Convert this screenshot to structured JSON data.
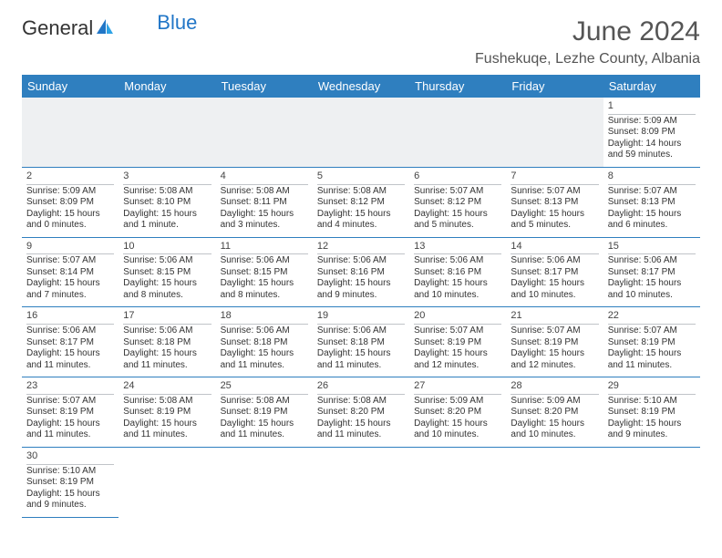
{
  "brand": {
    "text1": "General",
    "text2": "Blue",
    "color_main": "#333333",
    "color_accent": "#2176c7"
  },
  "title": {
    "month": "June 2024",
    "location": "Fushekuqe, Lezhe County, Albania",
    "title_fontsize": 30,
    "location_fontsize": 16,
    "title_color": "#555555"
  },
  "colors": {
    "header_bg": "#2f7fbf",
    "header_fg": "#ffffff",
    "row_border": "#2f7fbf",
    "empty_bg": "#eef0f2",
    "daynum_border": "#c0c4c8",
    "text": "#333333",
    "background": "#ffffff"
  },
  "calendar": {
    "type": "table",
    "columns": [
      "Sunday",
      "Monday",
      "Tuesday",
      "Wednesday",
      "Thursday",
      "Friday",
      "Saturday"
    ],
    "cell_fontsize": 10,
    "header_fontsize": 13,
    "weeks": [
      [
        null,
        null,
        null,
        null,
        null,
        null,
        {
          "day": "1",
          "sunrise": "Sunrise: 5:09 AM",
          "sunset": "Sunset: 8:09 PM",
          "daylight": "Daylight: 14 hours and 59 minutes."
        }
      ],
      [
        {
          "day": "2",
          "sunrise": "Sunrise: 5:09 AM",
          "sunset": "Sunset: 8:09 PM",
          "daylight": "Daylight: 15 hours and 0 minutes."
        },
        {
          "day": "3",
          "sunrise": "Sunrise: 5:08 AM",
          "sunset": "Sunset: 8:10 PM",
          "daylight": "Daylight: 15 hours and 1 minute."
        },
        {
          "day": "4",
          "sunrise": "Sunrise: 5:08 AM",
          "sunset": "Sunset: 8:11 PM",
          "daylight": "Daylight: 15 hours and 3 minutes."
        },
        {
          "day": "5",
          "sunrise": "Sunrise: 5:08 AM",
          "sunset": "Sunset: 8:12 PM",
          "daylight": "Daylight: 15 hours and 4 minutes."
        },
        {
          "day": "6",
          "sunrise": "Sunrise: 5:07 AM",
          "sunset": "Sunset: 8:12 PM",
          "daylight": "Daylight: 15 hours and 5 minutes."
        },
        {
          "day": "7",
          "sunrise": "Sunrise: 5:07 AM",
          "sunset": "Sunset: 8:13 PM",
          "daylight": "Daylight: 15 hours and 5 minutes."
        },
        {
          "day": "8",
          "sunrise": "Sunrise: 5:07 AM",
          "sunset": "Sunset: 8:13 PM",
          "daylight": "Daylight: 15 hours and 6 minutes."
        }
      ],
      [
        {
          "day": "9",
          "sunrise": "Sunrise: 5:07 AM",
          "sunset": "Sunset: 8:14 PM",
          "daylight": "Daylight: 15 hours and 7 minutes."
        },
        {
          "day": "10",
          "sunrise": "Sunrise: 5:06 AM",
          "sunset": "Sunset: 8:15 PM",
          "daylight": "Daylight: 15 hours and 8 minutes."
        },
        {
          "day": "11",
          "sunrise": "Sunrise: 5:06 AM",
          "sunset": "Sunset: 8:15 PM",
          "daylight": "Daylight: 15 hours and 8 minutes."
        },
        {
          "day": "12",
          "sunrise": "Sunrise: 5:06 AM",
          "sunset": "Sunset: 8:16 PM",
          "daylight": "Daylight: 15 hours and 9 minutes."
        },
        {
          "day": "13",
          "sunrise": "Sunrise: 5:06 AM",
          "sunset": "Sunset: 8:16 PM",
          "daylight": "Daylight: 15 hours and 10 minutes."
        },
        {
          "day": "14",
          "sunrise": "Sunrise: 5:06 AM",
          "sunset": "Sunset: 8:17 PM",
          "daylight": "Daylight: 15 hours and 10 minutes."
        },
        {
          "day": "15",
          "sunrise": "Sunrise: 5:06 AM",
          "sunset": "Sunset: 8:17 PM",
          "daylight": "Daylight: 15 hours and 10 minutes."
        }
      ],
      [
        {
          "day": "16",
          "sunrise": "Sunrise: 5:06 AM",
          "sunset": "Sunset: 8:17 PM",
          "daylight": "Daylight: 15 hours and 11 minutes."
        },
        {
          "day": "17",
          "sunrise": "Sunrise: 5:06 AM",
          "sunset": "Sunset: 8:18 PM",
          "daylight": "Daylight: 15 hours and 11 minutes."
        },
        {
          "day": "18",
          "sunrise": "Sunrise: 5:06 AM",
          "sunset": "Sunset: 8:18 PM",
          "daylight": "Daylight: 15 hours and 11 minutes."
        },
        {
          "day": "19",
          "sunrise": "Sunrise: 5:06 AM",
          "sunset": "Sunset: 8:18 PM",
          "daylight": "Daylight: 15 hours and 11 minutes."
        },
        {
          "day": "20",
          "sunrise": "Sunrise: 5:07 AM",
          "sunset": "Sunset: 8:19 PM",
          "daylight": "Daylight: 15 hours and 12 minutes."
        },
        {
          "day": "21",
          "sunrise": "Sunrise: 5:07 AM",
          "sunset": "Sunset: 8:19 PM",
          "daylight": "Daylight: 15 hours and 12 minutes."
        },
        {
          "day": "22",
          "sunrise": "Sunrise: 5:07 AM",
          "sunset": "Sunset: 8:19 PM",
          "daylight": "Daylight: 15 hours and 11 minutes."
        }
      ],
      [
        {
          "day": "23",
          "sunrise": "Sunrise: 5:07 AM",
          "sunset": "Sunset: 8:19 PM",
          "daylight": "Daylight: 15 hours and 11 minutes."
        },
        {
          "day": "24",
          "sunrise": "Sunrise: 5:08 AM",
          "sunset": "Sunset: 8:19 PM",
          "daylight": "Daylight: 15 hours and 11 minutes."
        },
        {
          "day": "25",
          "sunrise": "Sunrise: 5:08 AM",
          "sunset": "Sunset: 8:19 PM",
          "daylight": "Daylight: 15 hours and 11 minutes."
        },
        {
          "day": "26",
          "sunrise": "Sunrise: 5:08 AM",
          "sunset": "Sunset: 8:20 PM",
          "daylight": "Daylight: 15 hours and 11 minutes."
        },
        {
          "day": "27",
          "sunrise": "Sunrise: 5:09 AM",
          "sunset": "Sunset: 8:20 PM",
          "daylight": "Daylight: 15 hours and 10 minutes."
        },
        {
          "day": "28",
          "sunrise": "Sunrise: 5:09 AM",
          "sunset": "Sunset: 8:20 PM",
          "daylight": "Daylight: 15 hours and 10 minutes."
        },
        {
          "day": "29",
          "sunrise": "Sunrise: 5:10 AM",
          "sunset": "Sunset: 8:19 PM",
          "daylight": "Daylight: 15 hours and 9 minutes."
        }
      ],
      [
        {
          "day": "30",
          "sunrise": "Sunrise: 5:10 AM",
          "sunset": "Sunset: 8:19 PM",
          "daylight": "Daylight: 15 hours and 9 minutes."
        },
        null,
        null,
        null,
        null,
        null,
        null
      ]
    ]
  }
}
